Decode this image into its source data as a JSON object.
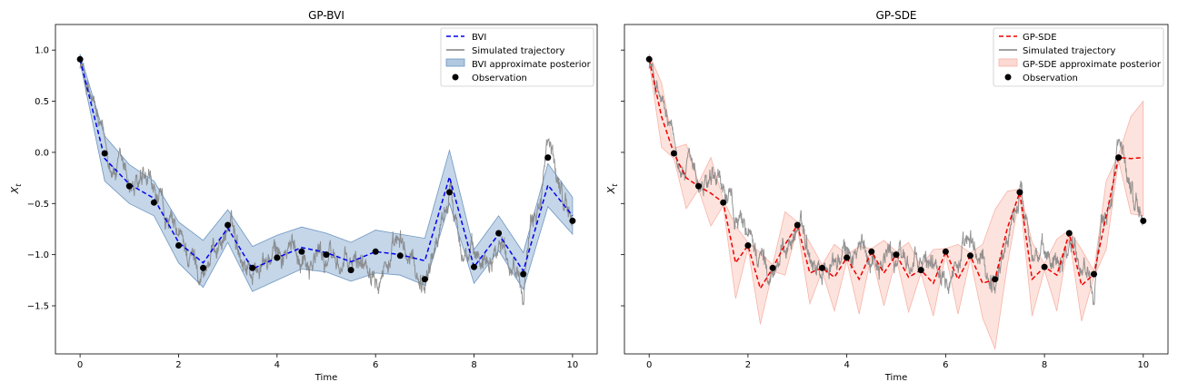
{
  "chart_data": [
    {
      "type": "line",
      "title": "GP-BVI",
      "xlabel": "Time",
      "ylabel": "X_t",
      "xlim": [
        -0.5,
        10.5
      ],
      "ylim": [
        -1.97,
        1.25
      ],
      "x_ticks": [
        0,
        2,
        4,
        6,
        8,
        10
      ],
      "y_ticks": [
        1.0,
        0.5,
        0.0,
        -0.5,
        -1.0,
        -1.5
      ],
      "x_tick_labels": [
        "0",
        "2",
        "4",
        "6",
        "8",
        "10"
      ],
      "y_tick_labels": [
        "1.0",
        "0.5",
        "0.0",
        "−0.5",
        "−1.0",
        "−1.5"
      ],
      "grid": false,
      "legend_position": "top-right",
      "legend": [
        "BVI",
        "Simulated trajectory",
        "BVI approximate posterior",
        "Observation"
      ],
      "colors": {
        "mean": "#0000ee",
        "trajectory": "#808080",
        "band_fill": "#b0c8e0",
        "band_edge": "#6f96c2",
        "observation": "#000000"
      },
      "observations": {
        "x": [
          0,
          0.5,
          1,
          1.5,
          2,
          2.5,
          3,
          3.5,
          4,
          4.5,
          5,
          5.5,
          6,
          6.5,
          7,
          7.5,
          8,
          8.5,
          9,
          9.5,
          10
        ],
        "y": [
          0.91,
          -0.01,
          -0.33,
          -0.49,
          -0.91,
          -1.13,
          -0.71,
          -1.13,
          -1.03,
          -0.97,
          -1.0,
          -1.15,
          -0.97,
          -1.01,
          -1.24,
          -0.39,
          -1.12,
          -0.79,
          -1.19,
          -0.05,
          -0.67
        ]
      },
      "mean": {
        "x": [
          0,
          0.5,
          1,
          1.5,
          2,
          2.5,
          3,
          3.5,
          4,
          4.5,
          5,
          5.5,
          6,
          6.5,
          7,
          7.5,
          8,
          8.5,
          9,
          9.5,
          10
        ],
        "y": [
          0.91,
          -0.06,
          -0.31,
          -0.45,
          -0.88,
          -1.08,
          -0.74,
          -1.14,
          -1.03,
          -0.93,
          -0.98,
          -1.07,
          -0.97,
          -1.0,
          -1.06,
          -0.24,
          -1.12,
          -0.8,
          -1.16,
          -0.32,
          -0.62
        ]
      },
      "band": {
        "x": [
          0,
          0.5,
          1,
          1.5,
          2,
          2.5,
          3,
          3.5,
          4,
          4.5,
          5,
          5.5,
          6,
          6.5,
          7,
          7.5,
          8,
          8.5,
          9,
          9.5,
          10
        ],
        "lower": [
          0.88,
          -0.28,
          -0.5,
          -0.62,
          -1.08,
          -1.32,
          -0.88,
          -1.36,
          -1.25,
          -1.14,
          -1.17,
          -1.26,
          -1.18,
          -1.2,
          -1.3,
          -0.5,
          -1.28,
          -0.96,
          -1.34,
          -0.53,
          -0.8
        ],
        "upper": [
          0.96,
          0.16,
          -0.12,
          -0.28,
          -0.68,
          -0.86,
          -0.56,
          -0.92,
          -0.81,
          -0.73,
          -0.79,
          -0.88,
          -0.76,
          -0.8,
          -0.84,
          0.02,
          -0.95,
          -0.62,
          -0.98,
          -0.11,
          -0.44
        ]
      },
      "trajectory_anchor": {
        "x": [
          0,
          0.5,
          1,
          1.5,
          2,
          2.5,
          3,
          3.5,
          4,
          4.5,
          5,
          5.5,
          6,
          6.5,
          7,
          7.5,
          8,
          8.5,
          9,
          9.5,
          10
        ],
        "y": [
          0.91,
          -0.01,
          -0.33,
          -0.49,
          -0.91,
          -1.13,
          -0.71,
          -1.13,
          -1.03,
          -0.97,
          -1.0,
          -1.15,
          -0.97,
          -1.01,
          -1.24,
          -0.39,
          -1.12,
          -0.79,
          -1.19,
          -0.05,
          -0.67
        ]
      }
    },
    {
      "type": "line",
      "title": "GP-SDE",
      "xlabel": "Time",
      "ylabel": "X_t",
      "xlim": [
        -0.5,
        10.5
      ],
      "ylim": [
        -1.97,
        1.25
      ],
      "x_ticks": [
        0,
        2,
        4,
        6,
        8,
        10
      ],
      "y_ticks": [
        1.0,
        0.5,
        0.0,
        -0.5,
        -1.0,
        -1.5
      ],
      "x_tick_labels": [
        "0",
        "2",
        "4",
        "6",
        "8",
        "10"
      ],
      "y_tick_labels": [],
      "grid": false,
      "legend_position": "top-right",
      "legend": [
        "GP-SDE",
        "Simulated trajectory",
        "GP-SDE approximate posterior",
        "Observation"
      ],
      "colors": {
        "mean": "#ee0000",
        "trajectory": "#808080",
        "band_fill": "#fcd9d2",
        "band_edge": "#f6b4a8",
        "observation": "#000000"
      },
      "observations": {
        "x": [
          0,
          0.5,
          1,
          1.5,
          2,
          2.5,
          3,
          3.5,
          4,
          4.5,
          5,
          5.5,
          6,
          6.5,
          7,
          7.5,
          8,
          8.5,
          9,
          9.5,
          10
        ],
        "y": [
          0.91,
          -0.01,
          -0.33,
          -0.49,
          -0.91,
          -1.13,
          -0.71,
          -1.13,
          -1.03,
          -0.97,
          -1.0,
          -1.15,
          -0.97,
          -1.01,
          -1.24,
          -0.39,
          -1.12,
          -0.79,
          -1.19,
          -0.05,
          -0.67
        ]
      },
      "mean": {
        "x": [
          0,
          0.25,
          0.5,
          0.75,
          1,
          1.25,
          1.5,
          1.75,
          2,
          2.25,
          2.5,
          2.75,
          3,
          3.25,
          3.5,
          3.75,
          4,
          4.25,
          4.5,
          4.75,
          5,
          5.25,
          5.5,
          5.75,
          6,
          6.25,
          6.5,
          6.75,
          7,
          7.25,
          7.5,
          7.75,
          8,
          8.25,
          8.5,
          8.75,
          9,
          9.25,
          9.5,
          9.75,
          10
        ],
        "y": [
          0.91,
          0.35,
          -0.01,
          -0.25,
          -0.33,
          -0.4,
          -0.49,
          -1.08,
          -0.91,
          -1.33,
          -1.13,
          -0.9,
          -0.71,
          -1.18,
          -1.13,
          -1.22,
          -1.03,
          -1.24,
          -0.97,
          -1.18,
          -1.0,
          -1.22,
          -1.15,
          -1.28,
          -0.97,
          -1.24,
          -1.01,
          -1.28,
          -1.24,
          -0.74,
          -0.39,
          -1.24,
          -1.12,
          -1.2,
          -0.79,
          -1.3,
          -1.19,
          -0.62,
          -0.05,
          -0.06,
          -0.05
        ]
      },
      "band": {
        "x": [
          0,
          0.25,
          0.5,
          0.75,
          1,
          1.25,
          1.5,
          1.75,
          2,
          2.25,
          2.5,
          2.75,
          3,
          3.25,
          3.5,
          3.75,
          4,
          4.25,
          4.5,
          4.75,
          5,
          5.25,
          5.5,
          5.75,
          6,
          6.25,
          6.5,
          6.75,
          7,
          7.25,
          7.5,
          7.75,
          8,
          8.25,
          8.5,
          8.75,
          9,
          9.25,
          9.5,
          9.75,
          10
        ],
        "lower": [
          0.88,
          0.05,
          -0.06,
          -0.55,
          -0.36,
          -0.72,
          -0.52,
          -1.43,
          -0.94,
          -1.68,
          -1.16,
          -1.2,
          -0.74,
          -1.48,
          -1.16,
          -1.55,
          -1.06,
          -1.58,
          -1.0,
          -1.5,
          -1.03,
          -1.56,
          -1.18,
          -1.6,
          -1.0,
          -1.58,
          -1.04,
          -1.62,
          -1.92,
          -1.1,
          -0.42,
          -1.6,
          -1.15,
          -1.55,
          -0.82,
          -1.65,
          -1.22,
          -0.95,
          -0.08,
          -0.6,
          -0.62
        ],
        "upper": [
          0.96,
          0.68,
          0.04,
          0.08,
          -0.3,
          -0.05,
          -0.46,
          -0.72,
          -0.88,
          -0.98,
          -1.1,
          -0.58,
          -0.68,
          -0.88,
          -1.1,
          -0.9,
          -1.0,
          -0.92,
          -0.94,
          -0.86,
          -0.97,
          -0.88,
          -1.12,
          -0.95,
          -0.94,
          -0.9,
          -0.98,
          -0.9,
          -0.56,
          -0.38,
          -0.36,
          -0.88,
          -1.09,
          -0.85,
          -0.76,
          -0.95,
          -1.16,
          -0.28,
          -0.02,
          0.35,
          0.5
        ]
      },
      "trajectory_anchor": {
        "x": [
          0,
          0.5,
          1,
          1.5,
          2,
          2.5,
          3,
          3.5,
          4,
          4.5,
          5,
          5.5,
          6,
          6.5,
          7,
          7.5,
          8,
          8.5,
          9,
          9.5,
          10
        ],
        "y": [
          0.91,
          -0.01,
          -0.33,
          -0.49,
          -0.91,
          -1.13,
          -0.71,
          -1.13,
          -1.03,
          -0.97,
          -1.0,
          -1.15,
          -0.97,
          -1.01,
          -1.24,
          -0.39,
          -1.12,
          -0.79,
          -1.19,
          -0.05,
          -0.67
        ]
      }
    }
  ]
}
